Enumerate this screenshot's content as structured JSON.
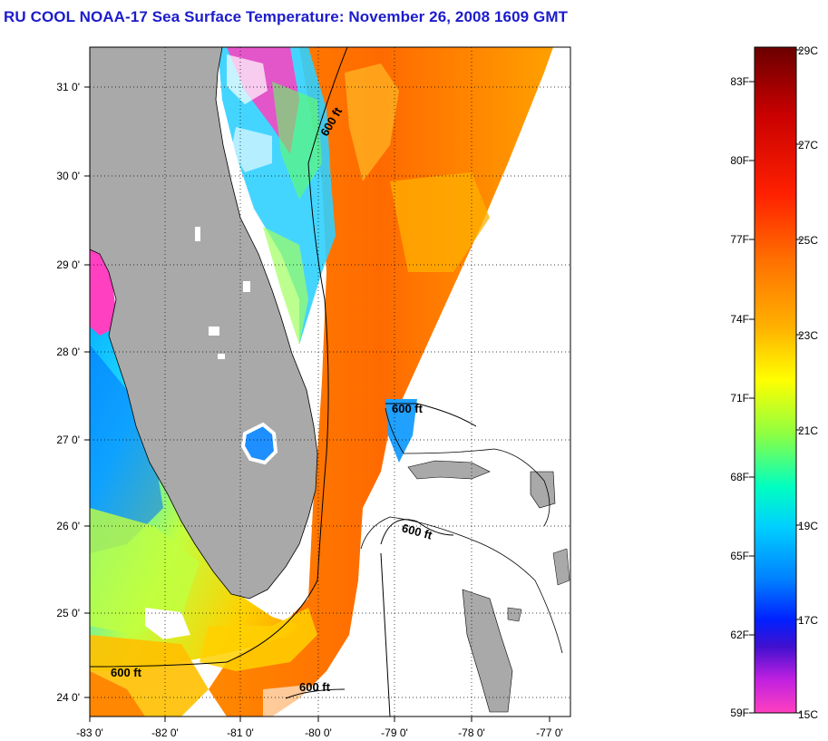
{
  "title": "RU COOL  NOAA-17  Sea Surface Temperature:  November 26, 2008 1609 GMT",
  "map": {
    "lon_ticks": [
      "-83 0'",
      "-82 0'",
      "-81 0'",
      "-80 0'",
      "-79 0'",
      "-78 0'",
      "-77 0'"
    ],
    "lat_ticks": [
      "31 0'",
      "30 0'",
      "29 0'",
      "28 0'",
      "27 0'",
      "26 0'",
      "25 0'",
      "24 0'"
    ],
    "contour_labels": [
      "600 ft",
      "600 ft",
      "600 ft",
      "600 ft",
      "600 ft"
    ],
    "land_color": "#a9a9a9",
    "cloud_color": "#ffffff"
  },
  "colorbar": {
    "celsius_labels": [
      "29C",
      "27C",
      "25C",
      "23C",
      "21C",
      "19C",
      "17C",
      "15C"
    ],
    "fahrenheit_labels": [
      "83F",
      "80F",
      "77F",
      "74F",
      "71F",
      "68F",
      "65F",
      "62F",
      "59F"
    ],
    "gradient_colors": [
      "#6b0000",
      "#c80000",
      "#ff2000",
      "#ff7000",
      "#ffb000",
      "#ffff00",
      "#90ff40",
      "#00ffc0",
      "#00d0ff",
      "#0080ff",
      "#0020ff",
      "#4010d0",
      "#c020e0",
      "#ff40c0"
    ]
  }
}
